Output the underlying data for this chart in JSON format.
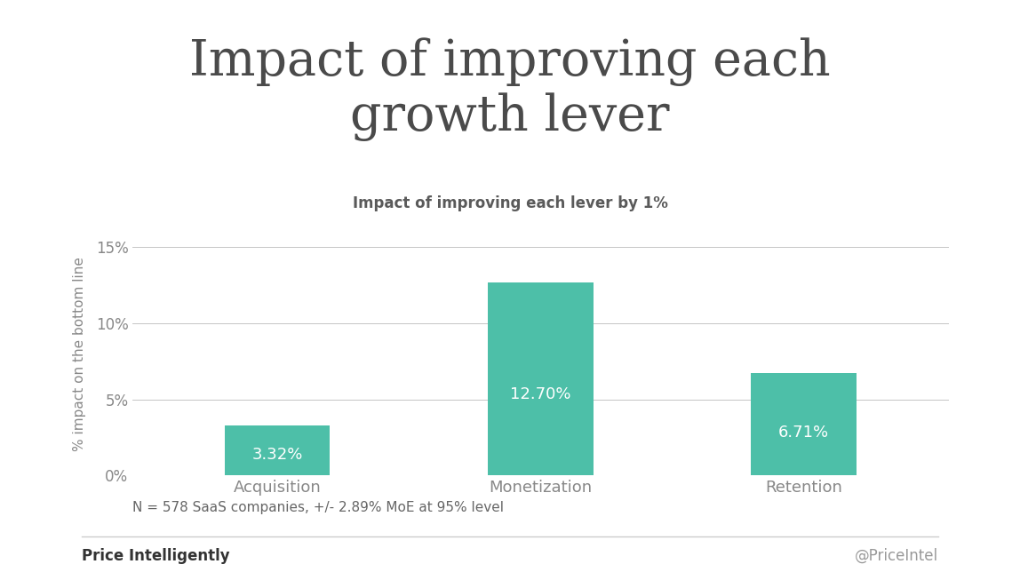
{
  "title_line1": "Impact of improving each",
  "title_line2": "growth lever",
  "subtitle": "Impact of improving each lever by 1%",
  "categories": [
    "Acquisition",
    "Monetization",
    "Retention"
  ],
  "values": [
    3.32,
    12.7,
    6.71
  ],
  "bar_color": "#4DBFA8",
  "bar_labels": [
    "3.32%",
    "12.70%",
    "6.71%"
  ],
  "ylabel": "% impact on the bottom line",
  "yticks": [
    0,
    5,
    10,
    15
  ],
  "ytick_labels": [
    "0%",
    "5%",
    "10%",
    "15%"
  ],
  "ylim": [
    0,
    16
  ],
  "footnote": "N = 578 SaaS companies, +/- 2.89% MoE at 95% level",
  "footer_left": "Price Intelligently",
  "footer_right": "@PriceIntel",
  "background_color": "#FFFFFF",
  "title_color": "#4a4a4a",
  "subtitle_color": "#5a5a5a",
  "label_color": "#FFFFFF",
  "grid_color": "#bbbbbb",
  "tick_color": "#888888",
  "footnote_color": "#666666",
  "footer_left_color": "#333333",
  "footer_right_color": "#999999",
  "footer_line_color": "#cccccc",
  "title_fontsize": 40,
  "subtitle_fontsize": 12,
  "ylabel_fontsize": 11,
  "bar_label_fontsize": 13,
  "xtick_fontsize": 13,
  "ytick_fontsize": 12,
  "footnote_fontsize": 11,
  "footer_fontsize": 12
}
